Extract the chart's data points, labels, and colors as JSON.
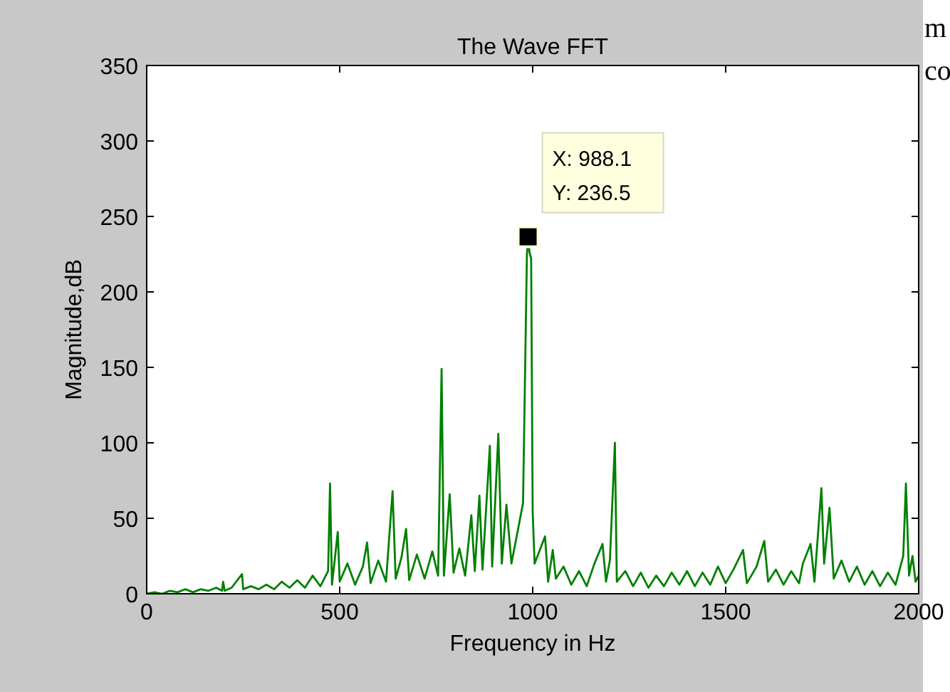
{
  "chart_data": {
    "type": "line",
    "title": "The Wave FFT",
    "xlabel": "Frequency in Hz",
    "ylabel": "Magnitude,dB",
    "xlim": [
      0,
      2000
    ],
    "xticks": [
      0,
      500,
      1000,
      1500,
      2000
    ],
    "ylim": [
      0,
      350
    ],
    "yticks": [
      0,
      50,
      100,
      150,
      200,
      250,
      300,
      350
    ],
    "grid": false,
    "marker": "none",
    "line_style": "solid",
    "series": [
      {
        "color": "#008000",
        "x": [
          0,
          20,
          40,
          60,
          80,
          100,
          120,
          140,
          160,
          180,
          195,
          198,
          202,
          220,
          247,
          250,
          270,
          290,
          310,
          330,
          350,
          370,
          390,
          410,
          430,
          450,
          470,
          475,
          480,
          495,
          500,
          520,
          540,
          560,
          571,
          580,
          600,
          620,
          637,
          645,
          660,
          672,
          680,
          700,
          720,
          740,
          755,
          764,
          770,
          785,
          795,
          810,
          825,
          841,
          850,
          862,
          870,
          889,
          895,
          911,
          920,
          932,
          945,
          960,
          975,
          985,
          988.1,
          992,
          996,
          1000,
          1005,
          1020,
          1032,
          1040,
          1052,
          1060,
          1080,
          1100,
          1120,
          1140,
          1160,
          1181,
          1190,
          1200,
          1213,
          1218,
          1240,
          1260,
          1280,
          1300,
          1320,
          1340,
          1360,
          1380,
          1400,
          1420,
          1440,
          1460,
          1480,
          1500,
          1520,
          1545,
          1555,
          1580,
          1600,
          1610,
          1630,
          1650,
          1670,
          1690,
          1700,
          1720,
          1730,
          1748,
          1755,
          1769,
          1780,
          1800,
          1820,
          1840,
          1860,
          1880,
          1900,
          1920,
          1940,
          1960,
          1967,
          1975,
          1984,
          1992,
          2000
        ],
        "values": [
          0,
          1,
          0,
          2,
          1,
          3,
          1,
          3,
          2,
          4,
          2,
          8,
          2,
          4,
          13,
          3,
          5,
          3,
          6,
          3,
          8,
          4,
          9,
          4,
          12,
          5,
          15,
          73,
          6,
          41,
          8,
          20,
          6,
          18,
          34,
          7,
          22,
          8,
          68,
          10,
          24,
          43,
          9,
          26,
          10,
          28,
          12,
          149,
          12,
          66,
          14,
          30,
          12,
          52,
          15,
          65,
          16,
          98,
          18,
          106,
          20,
          59,
          20,
          40,
          60,
          224,
          236.5,
          226,
          222,
          54,
          20,
          30,
          38,
          8,
          29,
          10,
          18,
          6,
          15,
          5,
          20,
          33,
          8,
          22,
          100,
          8,
          15,
          5,
          14,
          4,
          12,
          5,
          14,
          6,
          15,
          5,
          14,
          6,
          18,
          7,
          16,
          29,
          7,
          18,
          35,
          8,
          16,
          6,
          15,
          7,
          20,
          33,
          8,
          70,
          20,
          57,
          10,
          22,
          8,
          18,
          6,
          15,
          5,
          14,
          6,
          25,
          73,
          12,
          25,
          8,
          12
        ]
      }
    ],
    "annotations": [
      {
        "text": "X: 988.1\nY: 236.5",
        "x": 988.1,
        "y": 236.5
      },
      "m",
      "co"
    ]
  }
}
